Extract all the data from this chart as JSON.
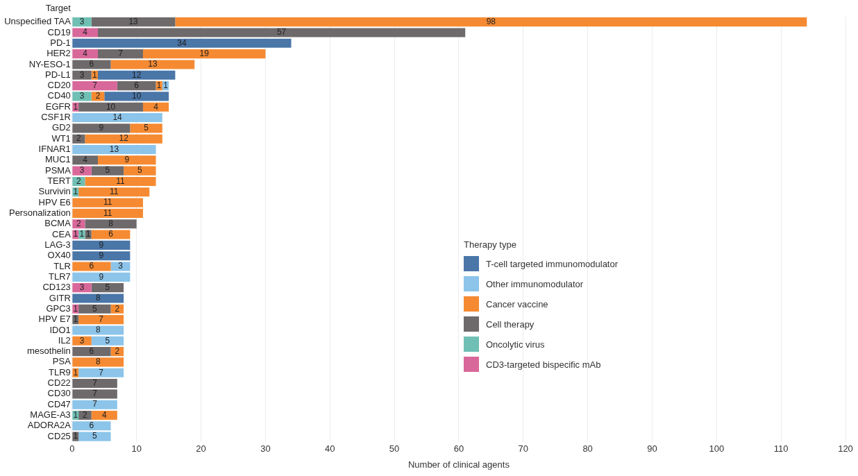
{
  "chart_data": {
    "type": "bar",
    "orientation": "horizontal",
    "stacked": true,
    "xlabel": "Number of clinical agents",
    "ylabel": "Target",
    "legend_title": "Therapy type",
    "legend": "right",
    "grid": "x",
    "data_labels": true,
    "categories": [
      "Unspecified TAA",
      "CD19",
      "PD-1",
      "HER2",
      "NY-ESO-1",
      "PD-L1",
      "CD20",
      "CD40",
      "EGFR",
      "CSF1R",
      "GD2",
      "WT1",
      "IFNAR1",
      "MUC1",
      "PSMA",
      "TERT",
      "Survivin",
      "HPV E6",
      "Personalization",
      "BCMA",
      "CEA",
      "LAG-3",
      "OX40",
      "TLR",
      "TLR7",
      "CD123",
      "GITR",
      "GPC3",
      "HPV E7",
      "IDO1",
      "IL2",
      "mesothelin",
      "PSA",
      "TLR9",
      "CD22",
      "CD30",
      "CD47",
      "MAGE-A3",
      "ADORA2A",
      "CD25"
    ],
    "xlim": [
      0,
      120
    ],
    "xticks": [
      0,
      10,
      20,
      30,
      40,
      50,
      60,
      70,
      80,
      90,
      100,
      110,
      120
    ],
    "series": [
      {
        "name": "CD3-targeted bispecific mAb",
        "color": "#d9689a",
        "values": [
          null,
          4,
          null,
          4,
          null,
          null,
          7,
          null,
          1,
          null,
          null,
          null,
          null,
          null,
          3,
          null,
          null,
          null,
          null,
          2,
          1,
          null,
          null,
          null,
          null,
          3,
          null,
          1,
          null,
          null,
          null,
          null,
          null,
          null,
          null,
          null,
          null,
          null,
          null,
          null
        ]
      },
      {
        "name": "Oncolytic virus",
        "color": "#6fbfb4",
        "values": [
          3,
          null,
          null,
          null,
          null,
          null,
          null,
          3,
          null,
          null,
          null,
          null,
          null,
          null,
          null,
          2,
          1,
          null,
          null,
          null,
          1,
          null,
          null,
          null,
          null,
          null,
          null,
          null,
          null,
          null,
          null,
          null,
          null,
          null,
          null,
          null,
          null,
          1,
          null,
          null
        ]
      },
      {
        "name": "Cell therapy",
        "color": "#6e6a6b",
        "values": [
          13,
          57,
          null,
          7,
          6,
          3,
          6,
          null,
          10,
          null,
          9,
          2,
          null,
          4,
          5,
          null,
          null,
          null,
          null,
          8,
          1,
          null,
          null,
          null,
          null,
          5,
          null,
          5,
          1,
          null,
          null,
          6,
          null,
          null,
          7,
          7,
          null,
          2,
          null,
          1
        ]
      },
      {
        "name": "Cancer vaccine",
        "color": "#f58a32",
        "values": [
          98,
          null,
          null,
          19,
          13,
          1,
          1,
          2,
          4,
          null,
          5,
          12,
          null,
          9,
          5,
          11,
          11,
          11,
          11,
          null,
          6,
          null,
          null,
          6,
          null,
          null,
          null,
          2,
          7,
          null,
          3,
          2,
          8,
          1,
          null,
          null,
          null,
          4,
          null,
          null
        ]
      },
      {
        "name": "Other immunomodulator",
        "color": "#8cc4ea",
        "values": [
          null,
          null,
          null,
          null,
          null,
          null,
          1,
          null,
          null,
          14,
          null,
          null,
          13,
          null,
          null,
          null,
          null,
          null,
          null,
          null,
          null,
          null,
          null,
          3,
          9,
          null,
          null,
          null,
          null,
          8,
          5,
          null,
          null,
          7,
          null,
          null,
          7,
          null,
          6,
          5
        ]
      },
      {
        "name": "T-cell targeted immunomodulator",
        "color": "#4a76a8",
        "values": [
          null,
          null,
          34,
          null,
          null,
          12,
          null,
          10,
          null,
          null,
          null,
          null,
          null,
          null,
          null,
          null,
          null,
          null,
          null,
          null,
          null,
          9,
          9,
          null,
          null,
          null,
          8,
          null,
          null,
          null,
          null,
          null,
          null,
          null,
          null,
          null,
          null,
          null,
          null,
          null
        ]
      }
    ]
  }
}
